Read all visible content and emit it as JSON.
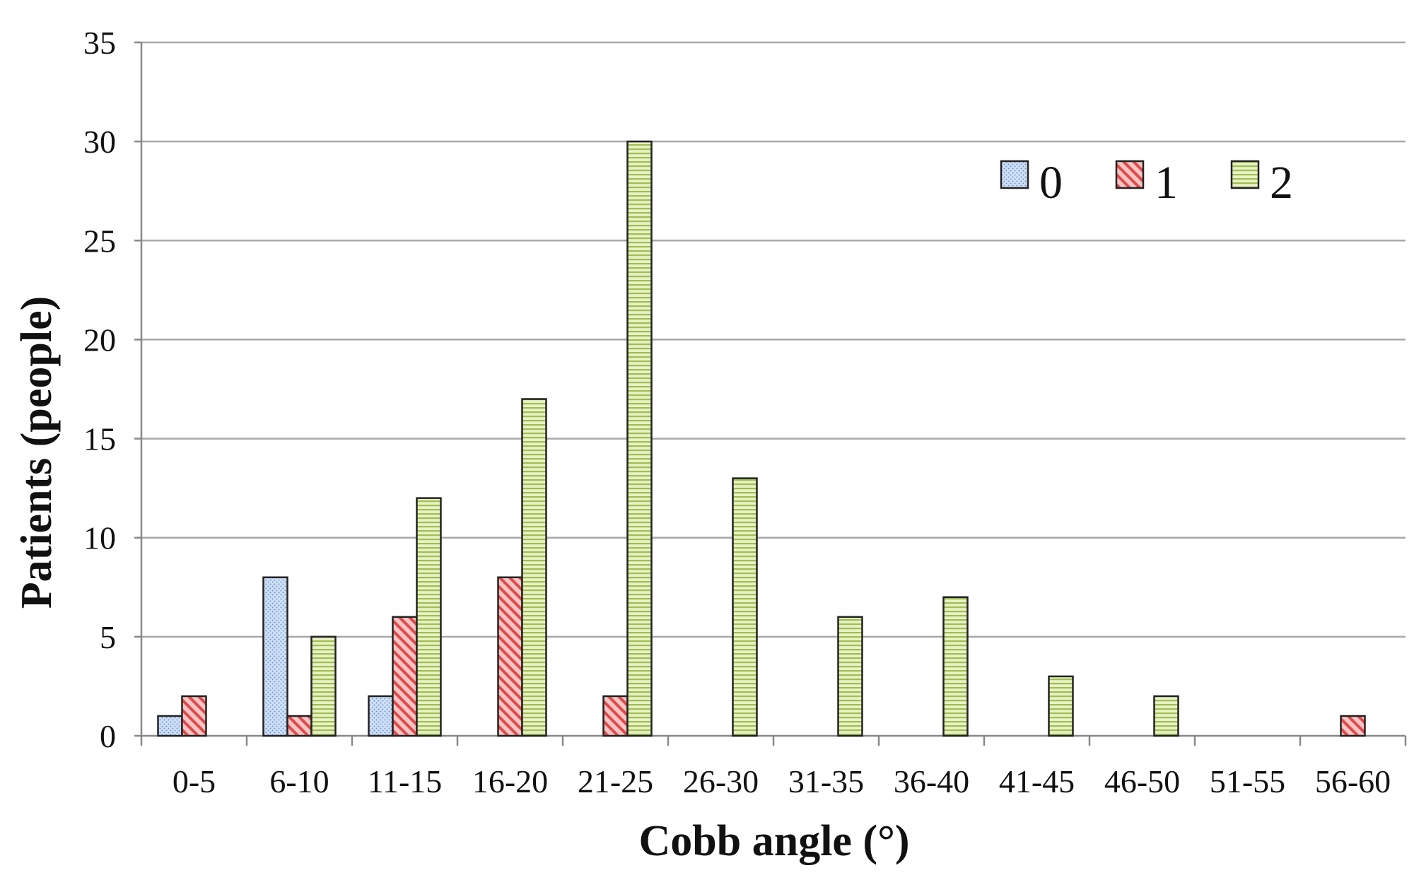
{
  "chart_data": {
    "type": "bar",
    "title": "",
    "xlabel": "Cobb angle (°)",
    "ylabel": "Patients (people)",
    "ylim": [
      0,
      35
    ],
    "yticks": [
      0,
      5,
      10,
      15,
      20,
      25,
      30,
      35
    ],
    "grid": true,
    "legend_position": "top-right",
    "categories": [
      "0-5",
      "6-10",
      "11-15",
      "16-20",
      "21-25",
      "26-30",
      "31-35",
      "36-40",
      "41-45",
      "46-50",
      "51-55",
      "56-60"
    ],
    "series": [
      {
        "name": "0",
        "color": "#c9dcf5",
        "pattern": "dots",
        "values": [
          1,
          8,
          2,
          0,
          0,
          0,
          0,
          0,
          0,
          0,
          0,
          0
        ]
      },
      {
        "name": "1",
        "color": "#f2a0a0",
        "pattern": "diagonal",
        "values": [
          2,
          1,
          6,
          8,
          2,
          0,
          0,
          0,
          0,
          0,
          0,
          1
        ]
      },
      {
        "name": "2",
        "color": "#d6e6a8",
        "pattern": "horizontal",
        "values": [
          0,
          5,
          12,
          17,
          30,
          13,
          6,
          7,
          3,
          2,
          0,
          0
        ]
      }
    ]
  }
}
